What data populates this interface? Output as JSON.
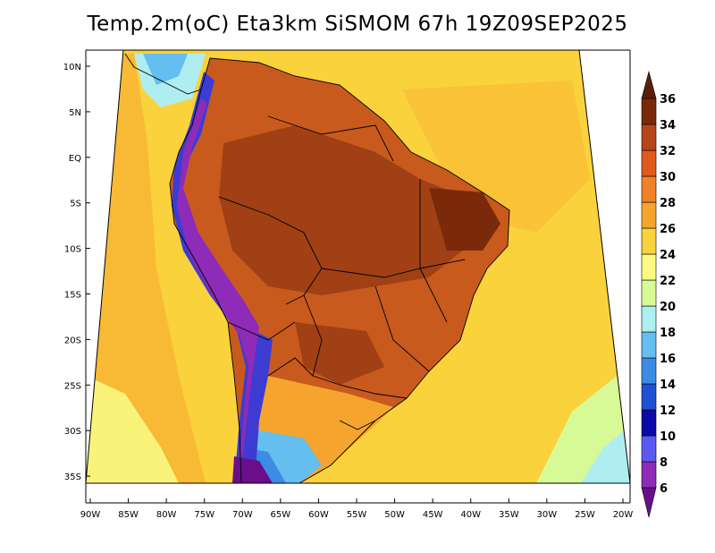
{
  "title": "Temp.2m(oC) Eta3km SiSMOM 67h 19Z09SEP2025",
  "lat_labels": [
    "10N",
    "5N",
    "EQ",
    "5S",
    "10S",
    "15S",
    "20S",
    "25S",
    "30S",
    "35S"
  ],
  "lon_labels": [
    "90W",
    "85W",
    "80W",
    "75W",
    "70W",
    "65W",
    "60W",
    "55W",
    "50W",
    "45W",
    "40W",
    "35W",
    "30W",
    "25W",
    "20W"
  ],
  "colorbar": {
    "labels": [
      "6",
      "8",
      "10",
      "12",
      "14",
      "16",
      "18",
      "20",
      "22",
      "24",
      "26",
      "28",
      "30",
      "32",
      "34",
      "36"
    ],
    "colors": [
      "#6a0f8c",
      "#8e2bb8",
      "#5a5af0",
      "#0a0aa8",
      "#1e50d4",
      "#3c8ce6",
      "#64bef0",
      "#aeeef0",
      "#d8fa96",
      "#fafa82",
      "#fad23c",
      "#f5a52d",
      "#f08228",
      "#de5a1e",
      "#b4461a",
      "#7a2a0a",
      "#5a1e0a"
    ]
  },
  "colors": {
    "ocean_warm": "#fad23c",
    "ocean_cool": "#f5a52d",
    "land_hot": "#b4461a",
    "land_very_hot": "#8c3812",
    "andes": "#3c3cd2"
  }
}
